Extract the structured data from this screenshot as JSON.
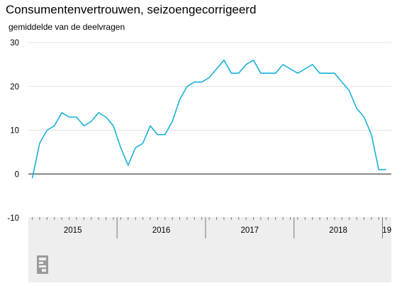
{
  "title": "Consumentenvertrouwen, seizoengecorrigeerd",
  "subtitle": "gemiddelde van de deelvragen",
  "colors": {
    "line": "#1ab0d8",
    "grid": "#e0e0e0",
    "zero": "#444444",
    "axis_band": "#eeeeee"
  },
  "logo_icon": "cbs-logo-icon",
  "chart_data": {
    "type": "line",
    "title": "Consumentenvertrouwen, seizoengecorrigeerd",
    "ylabel": "gemiddelde van de deelvragen",
    "xlabel": "",
    "ylim": [
      -10,
      30
    ],
    "yticks": [
      30,
      20,
      10,
      0,
      -10
    ],
    "grid": true,
    "x_year_labels": [
      "2015",
      "2016",
      "2017",
      "2018",
      "19"
    ],
    "x": [
      "2015-01",
      "2015-02",
      "2015-03",
      "2015-04",
      "2015-05",
      "2015-06",
      "2015-07",
      "2015-08",
      "2015-09",
      "2015-10",
      "2015-11",
      "2015-12",
      "2016-01",
      "2016-02",
      "2016-03",
      "2016-04",
      "2016-05",
      "2016-06",
      "2016-07",
      "2016-08",
      "2016-09",
      "2016-10",
      "2016-11",
      "2016-12",
      "2017-01",
      "2017-02",
      "2017-03",
      "2017-04",
      "2017-05",
      "2017-06",
      "2017-07",
      "2017-08",
      "2017-09",
      "2017-10",
      "2017-11",
      "2017-12",
      "2018-01",
      "2018-02",
      "2018-03",
      "2018-04",
      "2018-05",
      "2018-06",
      "2018-07",
      "2018-08",
      "2018-09",
      "2018-10",
      "2018-11",
      "2018-12",
      "2019-01"
    ],
    "series": [
      {
        "values": [
          -1,
          7,
          10,
          11,
          14,
          13,
          13,
          11,
          12,
          14,
          13,
          11,
          6,
          2,
          6,
          7,
          11,
          9,
          9,
          12,
          17,
          20,
          21,
          21,
          22,
          24,
          26,
          23,
          23,
          25,
          26,
          23,
          23,
          23,
          25,
          24,
          23,
          24,
          25,
          23,
          23,
          23,
          21,
          19,
          15,
          13,
          9,
          1,
          1
        ]
      }
    ]
  }
}
